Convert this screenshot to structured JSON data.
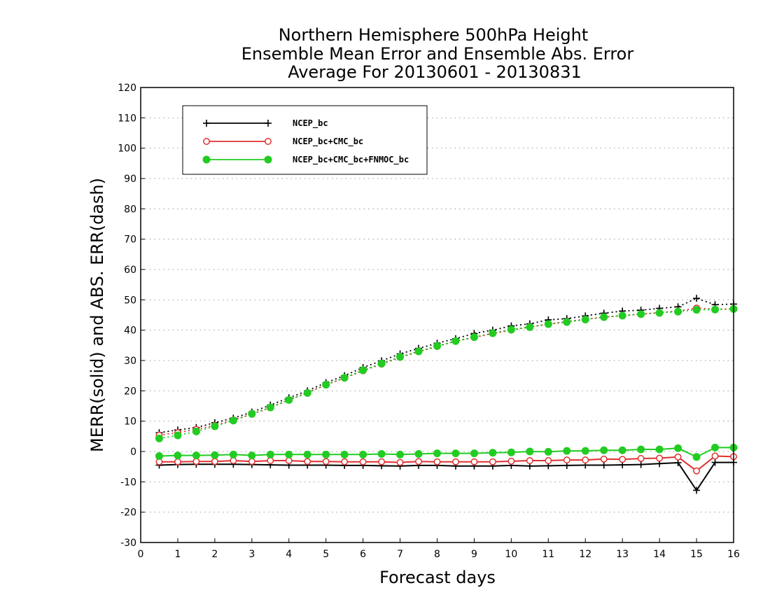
{
  "chart_data": {
    "type": "line",
    "title": [
      "Northern Hemisphere 500hPa Height",
      "Ensemble Mean Error and Ensemble Abs. Error",
      "Average For 20130601 - 20130831"
    ],
    "xlabel": "Forecast days",
    "ylabel": "MERR(solid) and ABS. ERR(dash)",
    "xlim": [
      0,
      16
    ],
    "ylim": [
      -30,
      120
    ],
    "xticks": [
      0,
      1,
      2,
      3,
      4,
      5,
      6,
      7,
      8,
      9,
      10,
      11,
      12,
      13,
      14,
      15,
      16
    ],
    "yticks": [
      -30,
      -20,
      -10,
      0,
      10,
      20,
      30,
      40,
      50,
      60,
      70,
      80,
      90,
      100,
      110,
      120
    ],
    "grid": "horizontal dotted",
    "legend_position": "top-left",
    "x": [
      0.5,
      1,
      1.5,
      2,
      2.5,
      3,
      3.5,
      4,
      4.5,
      5,
      5.5,
      6,
      6.5,
      7,
      7.5,
      8,
      8.5,
      9,
      9.5,
      10,
      10.5,
      11,
      11.5,
      12,
      12.5,
      13,
      13.5,
      14,
      14.5,
      15,
      15.5,
      16
    ],
    "series": [
      {
        "name": "NCEP_bc",
        "color": "#000000",
        "marker": "plus",
        "merr": [
          -4.5,
          -4.3,
          -4.2,
          -4.2,
          -4.2,
          -4.3,
          -4.4,
          -4.5,
          -4.5,
          -4.5,
          -4.6,
          -4.6,
          -4.7,
          -4.8,
          -4.6,
          -4.6,
          -4.8,
          -4.8,
          -4.8,
          -4.6,
          -4.8,
          -4.7,
          -4.6,
          -4.5,
          -4.5,
          -4.4,
          -4.3,
          -4.0,
          -3.7,
          -12.8,
          -3.6,
          -3.6
        ],
        "abs_err": [
          6.2,
          7.1,
          7.9,
          9.5,
          11.0,
          13.0,
          15.3,
          17.7,
          20.0,
          22.7,
          25.0,
          27.7,
          29.9,
          32.2,
          34.0,
          35.7,
          37.2,
          38.9,
          40.0,
          41.4,
          42.1,
          43.4,
          43.8,
          44.7,
          45.6,
          46.3,
          46.6,
          47.2,
          47.7,
          50.5,
          48.4,
          48.6
        ]
      },
      {
        "name": "NCEP_bc+CMC_bc",
        "color": "#e03030",
        "marker": "open-circle",
        "merr": [
          -3.4,
          -3.4,
          -3.3,
          -3.3,
          -3.0,
          -3.3,
          -3.0,
          -3.0,
          -3.3,
          -3.3,
          -3.4,
          -3.4,
          -3.4,
          -3.6,
          -3.3,
          -3.4,
          -3.4,
          -3.4,
          -3.4,
          -3.2,
          -3.0,
          -3.0,
          -2.8,
          -2.8,
          -2.5,
          -2.6,
          -2.3,
          -2.2,
          -1.8,
          -6.4,
          -1.5,
          -1.7
        ],
        "abs_err": [
          5.4,
          6.2,
          7.3,
          8.6,
          10.4,
          12.3,
          14.5,
          17.0,
          19.4,
          22.0,
          24.2,
          26.6,
          28.8,
          31.0,
          32.9,
          34.6,
          36.4,
          37.6,
          38.9,
          40.0,
          41.1,
          42.0,
          42.8,
          43.6,
          44.3,
          44.8,
          45.3,
          45.8,
          46.3,
          47.3,
          46.9,
          47.0
        ]
      },
      {
        "name": "NCEP_bc+CMC_bc+FNMOC_bc",
        "color": "#22cc22",
        "marker": "filled-circle",
        "merr": [
          -1.5,
          -1.3,
          -1.3,
          -1.2,
          -1.0,
          -1.3,
          -1.0,
          -1.0,
          -1.0,
          -1.0,
          -1.0,
          -1.0,
          -0.8,
          -1.0,
          -0.8,
          -0.6,
          -0.6,
          -0.6,
          -0.4,
          -0.3,
          0.0,
          -0.1,
          0.2,
          0.2,
          0.4,
          0.4,
          0.7,
          0.7,
          1.1,
          -1.8,
          1.3,
          1.3
        ],
        "abs_err": [
          4.3,
          5.3,
          6.6,
          8.3,
          10.2,
          12.4,
          14.5,
          17.0,
          19.3,
          22.0,
          24.3,
          26.8,
          29.0,
          31.2,
          33.0,
          34.8,
          36.4,
          37.7,
          39.0,
          40.2,
          41.0,
          42.0,
          42.7,
          43.5,
          44.3,
          44.8,
          45.3,
          45.7,
          46.1,
          46.7,
          46.8,
          47.0
        ]
      }
    ]
  }
}
